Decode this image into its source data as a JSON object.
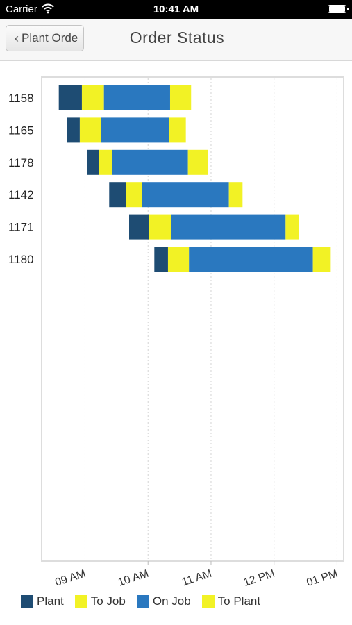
{
  "status_bar": {
    "carrier": "Carrier",
    "time": "10:41 AM"
  },
  "nav": {
    "back_label": "Plant Orde",
    "title": "Order Status"
  },
  "colors": {
    "plant": "#1e4c73",
    "to_job": "#f2f225",
    "on_job": "#2a78bf",
    "to_plant": "#f2f225",
    "grid": "#d3d3d3",
    "frame": "#dddddd"
  },
  "chart_data": {
    "type": "bar",
    "orientation": "horizontal-gantt",
    "x_axis": {
      "type": "time",
      "range": [
        "08:20",
        "13:05"
      ],
      "ticks": [
        "09 AM",
        "10 AM",
        "11 AM",
        "12 PM",
        "01 PM"
      ],
      "tick_hours": [
        9,
        10,
        11,
        12,
        13
      ]
    },
    "categories": [
      "1158",
      "1165",
      "1178",
      "1142",
      "1171",
      "1180"
    ],
    "series": [
      {
        "name": "Plant",
        "color": "#1e4c73"
      },
      {
        "name": "To Job",
        "color": "#f2f225"
      },
      {
        "name": "On Job",
        "color": "#2a78bf"
      },
      {
        "name": "To Plant",
        "color": "#f2f225"
      }
    ],
    "orders": [
      {
        "id": "1158",
        "segments": [
          [
            "08:35",
            "08:57"
          ],
          [
            "08:57",
            "09:18"
          ],
          [
            "09:18",
            "10:21"
          ],
          [
            "10:21",
            "10:41"
          ]
        ]
      },
      {
        "id": "1165",
        "segments": [
          [
            "08:43",
            "08:55"
          ],
          [
            "08:55",
            "09:15"
          ],
          [
            "09:15",
            "10:20"
          ],
          [
            "10:20",
            "10:36"
          ]
        ]
      },
      {
        "id": "1178",
        "segments": [
          [
            "09:02",
            "09:13"
          ],
          [
            "09:13",
            "09:26"
          ],
          [
            "09:26",
            "10:38"
          ],
          [
            "10:38",
            "10:57"
          ]
        ]
      },
      {
        "id": "1142",
        "segments": [
          [
            "09:23",
            "09:39"
          ],
          [
            "09:39",
            "09:54"
          ],
          [
            "09:54",
            "11:17"
          ],
          [
            "11:17",
            "11:30"
          ]
        ]
      },
      {
        "id": "1171",
        "segments": [
          [
            "09:42",
            "10:01"
          ],
          [
            "10:01",
            "10:22"
          ],
          [
            "10:22",
            "12:11"
          ],
          [
            "12:11",
            "12:24"
          ]
        ]
      },
      {
        "id": "1180",
        "segments": [
          [
            "10:06",
            "10:19"
          ],
          [
            "10:19",
            "10:39"
          ],
          [
            "10:39",
            "12:37"
          ],
          [
            "12:37",
            "12:54"
          ]
        ]
      }
    ],
    "legend": [
      "Plant",
      "To Job",
      "On Job",
      "To Plant"
    ],
    "legend_position": "bottom-left",
    "grid": "vertical-dotted"
  }
}
